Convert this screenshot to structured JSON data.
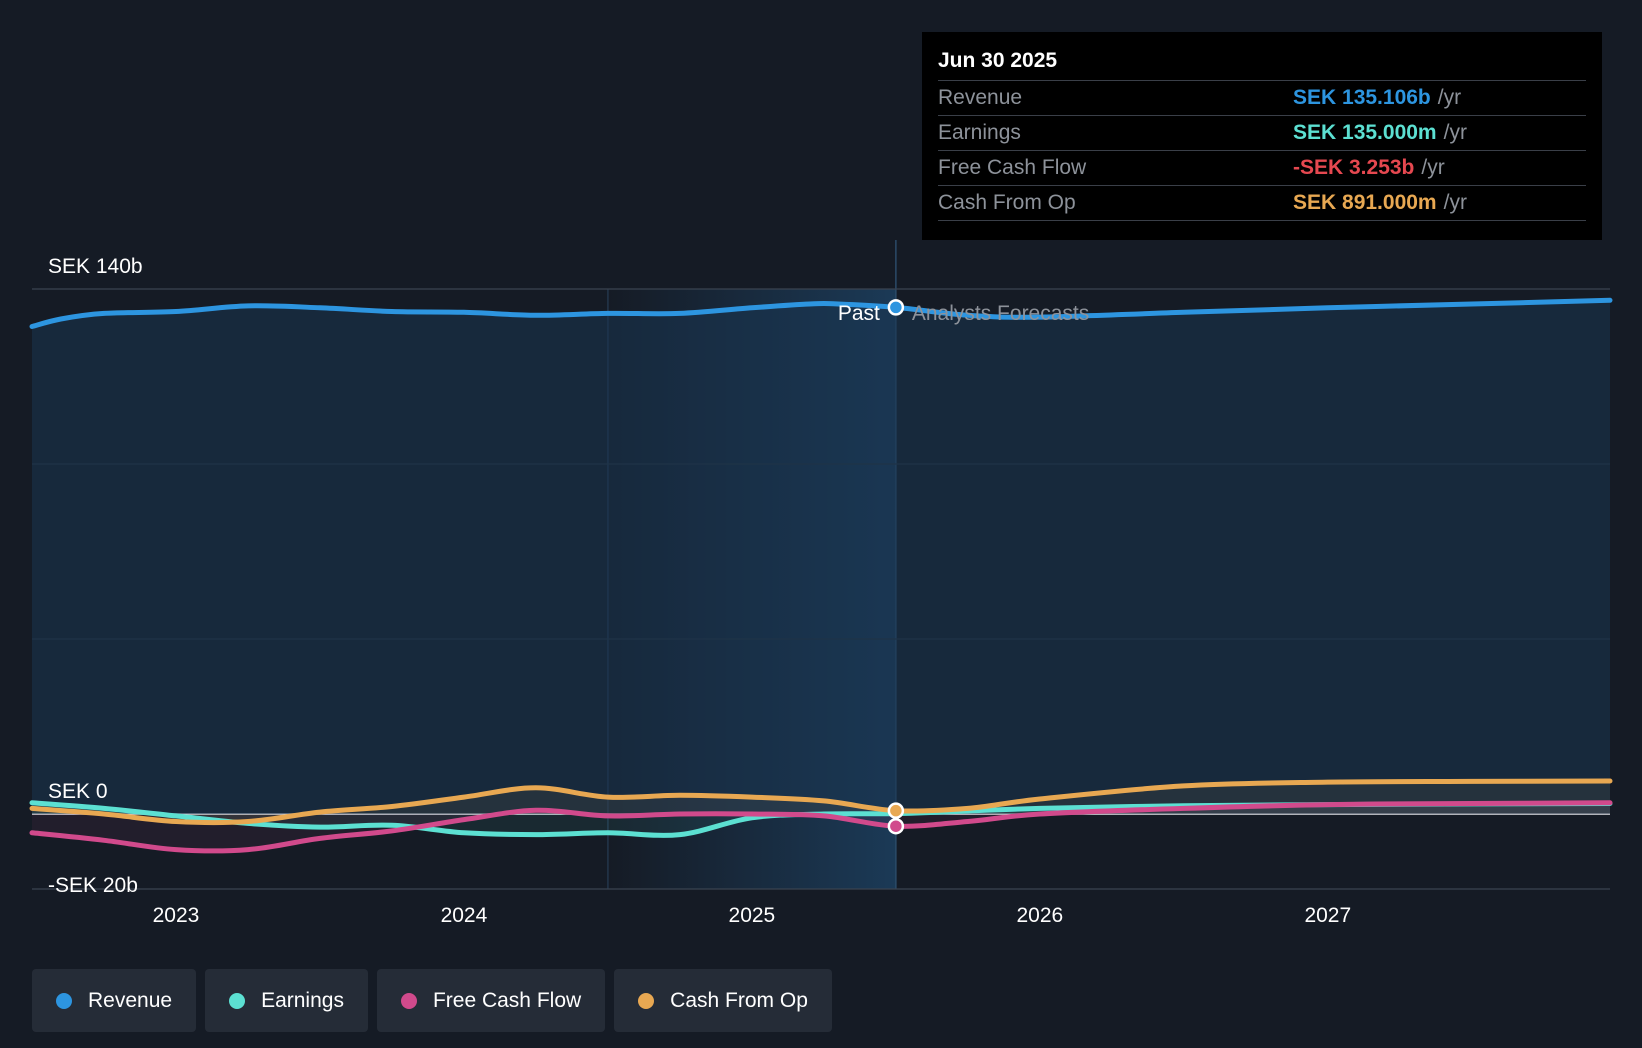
{
  "chart_data": {
    "type": "line",
    "x_axis": {
      "ticks": [
        "2023",
        "2024",
        "2025",
        "2026",
        "2027"
      ],
      "range": [
        2022.5,
        2027.98
      ]
    },
    "y_axis": {
      "range": [
        -20,
        140
      ],
      "labels": [
        "SEK 140b",
        "SEK 0",
        "-SEK 20b"
      ],
      "label_values": [
        140,
        0,
        -20
      ]
    },
    "split": {
      "x": 2025.5,
      "past_label": "Past",
      "forecast_label": "Analysts Forecasts"
    },
    "series": [
      {
        "name": "Revenue",
        "color": "#2d95e0",
        "fill": true,
        "points": [
          [
            2022.5,
            130
          ],
          [
            2022.6,
            132
          ],
          [
            2022.75,
            133.5
          ],
          [
            2023.0,
            134
          ],
          [
            2023.25,
            135.5
          ],
          [
            2023.5,
            135
          ],
          [
            2023.75,
            134
          ],
          [
            2024.0,
            133.8
          ],
          [
            2024.25,
            133
          ],
          [
            2024.5,
            133.5
          ],
          [
            2024.75,
            133.5
          ],
          [
            2025.0,
            135
          ],
          [
            2025.2,
            136
          ],
          [
            2025.3,
            136
          ],
          [
            2025.5,
            135.1
          ],
          [
            2025.75,
            133
          ],
          [
            2026.0,
            132.5
          ],
          [
            2026.5,
            133.8
          ],
          [
            2027.0,
            135
          ],
          [
            2027.5,
            136
          ],
          [
            2027.98,
            137
          ]
        ]
      },
      {
        "name": "Earnings",
        "color": "#5ce0d2",
        "points": [
          [
            2022.5,
            3
          ],
          [
            2022.75,
            1.5
          ],
          [
            2023.0,
            -0.5
          ],
          [
            2023.25,
            -2.5
          ],
          [
            2023.5,
            -3.5
          ],
          [
            2023.75,
            -3
          ],
          [
            2024.0,
            -5
          ],
          [
            2024.25,
            -5.5
          ],
          [
            2024.5,
            -5
          ],
          [
            2024.75,
            -5.5
          ],
          [
            2025.0,
            -1
          ],
          [
            2025.25,
            0
          ],
          [
            2025.5,
            0.1
          ],
          [
            2025.75,
            0.8
          ],
          [
            2026.0,
            1.5
          ],
          [
            2026.5,
            2.2
          ],
          [
            2027.0,
            2.5
          ],
          [
            2027.5,
            2.7
          ],
          [
            2027.98,
            2.8
          ]
        ]
      },
      {
        "name": "Free Cash Flow",
        "color": "#d14a8c",
        "points": [
          [
            2022.5,
            -5
          ],
          [
            2022.75,
            -7
          ],
          [
            2023.0,
            -9.5
          ],
          [
            2023.25,
            -9.5
          ],
          [
            2023.5,
            -6.5
          ],
          [
            2023.75,
            -4.5
          ],
          [
            2024.0,
            -1.5
          ],
          [
            2024.25,
            1
          ],
          [
            2024.5,
            -0.5
          ],
          [
            2024.75,
            0
          ],
          [
            2025.0,
            0
          ],
          [
            2025.25,
            -0.5
          ],
          [
            2025.5,
            -3.253
          ],
          [
            2025.75,
            -2
          ],
          [
            2026.0,
            0
          ],
          [
            2026.5,
            1.5
          ],
          [
            2027.0,
            2.5
          ],
          [
            2027.5,
            2.8
          ],
          [
            2027.98,
            3
          ]
        ]
      },
      {
        "name": "Cash From Op",
        "color": "#e8a852",
        "points": [
          [
            2022.5,
            1.5
          ],
          [
            2022.75,
            0
          ],
          [
            2023.0,
            -2
          ],
          [
            2023.25,
            -2
          ],
          [
            2023.5,
            0.5
          ],
          [
            2023.75,
            2
          ],
          [
            2024.0,
            4.5
          ],
          [
            2024.25,
            7
          ],
          [
            2024.5,
            4.5
          ],
          [
            2024.75,
            5
          ],
          [
            2025.0,
            4.5
          ],
          [
            2025.25,
            3.5
          ],
          [
            2025.5,
            0.891
          ],
          [
            2025.75,
            1.5
          ],
          [
            2026.0,
            4
          ],
          [
            2026.5,
            7.5
          ],
          [
            2027.0,
            8.5
          ],
          [
            2027.5,
            8.7
          ],
          [
            2027.98,
            8.8
          ]
        ]
      }
    ]
  },
  "tooltip": {
    "date": "Jun 30 2025",
    "rows": [
      {
        "label": "Revenue",
        "value": "SEK 135.106b",
        "unit": "/yr",
        "color": "#2d95e0"
      },
      {
        "label": "Earnings",
        "value": "SEK 135.000m",
        "unit": "/yr",
        "color": "#5ce0d2"
      },
      {
        "label": "Free Cash Flow",
        "value": "-SEK 3.253b",
        "unit": "/yr",
        "color": "#e64850"
      },
      {
        "label": "Cash From Op",
        "value": "SEK 891.000m",
        "unit": "/yr",
        "color": "#e8a852"
      }
    ]
  },
  "legend": [
    {
      "label": "Revenue",
      "color": "#2d95e0"
    },
    {
      "label": "Earnings",
      "color": "#5ce0d2"
    },
    {
      "label": "Free Cash Flow",
      "color": "#d14a8c"
    },
    {
      "label": "Cash From Op",
      "color": "#e8a852"
    }
  ]
}
